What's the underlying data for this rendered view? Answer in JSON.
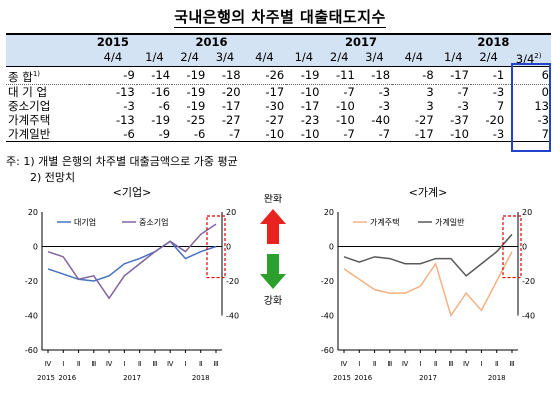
{
  "title": "국내은행의 차주별 대출태도지수",
  "table": {
    "year_headers": [
      "2015",
      "2016",
      "2017",
      "2018"
    ],
    "quarter_headers": [
      "4/4",
      "1/4",
      "2/4",
      "3/4",
      "4/4",
      "1/4",
      "2/4",
      "3/4",
      "4/4",
      "1/4",
      "2/4",
      "3/4"
    ],
    "last_quarter_super": "2)",
    "rows": [
      {
        "label": "종    합",
        "label_sup": "1)",
        "values": [
          "-9",
          "-14",
          "-19",
          "-18",
          "-26",
          "-19",
          "-11",
          "-18",
          "-8",
          "-17",
          "-1",
          "6"
        ]
      },
      {
        "label": "대 기 업",
        "label_sup": "",
        "values": [
          "-13",
          "-16",
          "-19",
          "-20",
          "-17",
          "-10",
          "-7",
          "-3",
          "3",
          "-7",
          "-3",
          "0"
        ]
      },
      {
        "label": "중소기업",
        "label_sup": "",
        "values": [
          "-3",
          "-6",
          "-19",
          "-17",
          "-30",
          "-17",
          "-10",
          "-3",
          "3",
          "-3",
          "7",
          "13"
        ]
      },
      {
        "label": "가계주택",
        "label_sup": "",
        "values": [
          "-13",
          "-19",
          "-25",
          "-27",
          "-27",
          "-23",
          "-10",
          "-40",
          "-27",
          "-37",
          "-20",
          "-3"
        ]
      },
      {
        "label": "가계일반",
        "label_sup": "",
        "values": [
          "-6",
          "-9",
          "-6",
          "-7",
          "-10",
          "-10",
          "-7",
          "-7",
          "-17",
          "-10",
          "-3",
          "7"
        ]
      }
    ]
  },
  "notes": [
    "주: 1) 개별 은행의 차주별 대출금액으로 가중 평균",
    "2) 전망치"
  ],
  "arrows": {
    "up_label": "완화",
    "down_label": "강화",
    "up_color": "#e8231f",
    "down_color": "#2ca02c"
  },
  "chart_data": [
    {
      "type": "line",
      "title": "<기업>",
      "x": [
        "Ⅳ",
        "Ⅰ",
        "Ⅱ",
        "Ⅲ",
        "Ⅳ",
        "Ⅰ",
        "Ⅱ",
        "Ⅲ",
        "Ⅳ",
        "Ⅰ",
        "Ⅱ",
        "Ⅲ"
      ],
      "year_labels": [
        "2015",
        "2016",
        "2017",
        "2018"
      ],
      "ylim": [
        -60,
        20
      ],
      "left_ticks": [
        "20",
        "0",
        "-20",
        "-40",
        "-60"
      ],
      "right_ticks": [
        "20",
        "0",
        "-20",
        "-40"
      ],
      "series": [
        {
          "name": "대기업",
          "color": "#4472c4",
          "values": [
            -13,
            -16,
            -19,
            -20,
            -17,
            -10,
            -7,
            -3,
            3,
            -7,
            -3,
            0
          ]
        },
        {
          "name": "중소기업",
          "color": "#8064a2",
          "values": [
            -3,
            -6,
            -19,
            -17,
            -30,
            -17,
            -10,
            -3,
            3,
            -3,
            7,
            13
          ]
        }
      ]
    },
    {
      "type": "line",
      "title": "<가계>",
      "x": [
        "Ⅳ",
        "Ⅰ",
        "Ⅱ",
        "Ⅲ",
        "Ⅳ",
        "Ⅰ",
        "Ⅱ",
        "Ⅲ",
        "Ⅳ",
        "Ⅰ",
        "Ⅱ",
        "Ⅲ"
      ],
      "year_labels": [
        "2015",
        "2016",
        "2017",
        "2018"
      ],
      "ylim": [
        -60,
        20
      ],
      "left_ticks": [
        "20",
        "0",
        "-20",
        "-40",
        "-60"
      ],
      "right_ticks": [
        "20",
        "0",
        "-20",
        "-40"
      ],
      "series": [
        {
          "name": "가계주택",
          "color": "#f5b183",
          "values": [
            -13,
            -19,
            -25,
            -27,
            -27,
            -23,
            -10,
            -40,
            -27,
            -37,
            -20,
            -3
          ]
        },
        {
          "name": "가계일반",
          "color": "#595959",
          "values": [
            -6,
            -9,
            -6,
            -7,
            -10,
            -10,
            -7,
            -7,
            -17,
            -10,
            -3,
            7
          ]
        }
      ]
    }
  ]
}
